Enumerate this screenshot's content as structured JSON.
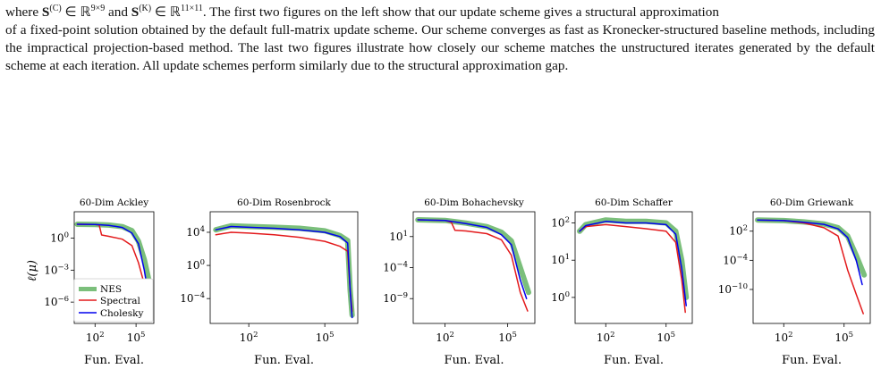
{
  "caption": {
    "line1_a": "where ",
    "math1": "S",
    "math1_sup": "(C)",
    "math1_in": " ∈ ℝ",
    "math1_dim": "9×9",
    "and": " and ",
    "math2": "S",
    "math2_sup": "(K)",
    "math2_in": " ∈ ℝ",
    "math2_dim": "11×11",
    "line1_b": ". The first two figures on the left show that our update scheme gives a structural approximation",
    "rest": "of a fixed-point solution obtained by the default full-matrix update scheme. Our scheme converges as fast as Kronecker-structured baseline methods, including the impractical projection-based method. The last two figures illustrate how closely our scheme matches the unstructured iterates generated by the default scheme at each iteration. All update schemes perform similarly due to the structural approximation gap."
  },
  "figure": {
    "ylabel": "ℓ(μ)",
    "legend": [
      {
        "name": "NES",
        "color": "#7bbf7b"
      },
      {
        "name": "Spectral",
        "color": "#e31a1c"
      },
      {
        "name": "Cholesky",
        "color": "#0000ee"
      }
    ]
  },
  "chart_data": [
    {
      "type": "line",
      "title": "60-Dim Ackley",
      "xlabel": "Fun. Eval.",
      "ylabel": "ℓ(μ)",
      "xscale": "log",
      "yscale": "log",
      "xlim": [
        3,
        2000000
      ],
      "ylim": [
        1e-08,
        300
      ],
      "xticks": [
        {
          "v": 100,
          "m": "10",
          "e": "2"
        },
        {
          "v": 100000,
          "m": "10",
          "e": "5"
        }
      ],
      "yticks": [
        {
          "v": 1,
          "m": "10",
          "e": "0"
        },
        {
          "v": 0.001,
          "m": "10",
          "e": "−3"
        },
        {
          "v": 1e-06,
          "m": "10",
          "e": "−6"
        }
      ],
      "series": [
        {
          "name": "NES",
          "x": [
            5,
            100,
            1000,
            10000,
            50000,
            150000,
            400000,
            1000000
          ],
          "y": [
            20,
            19,
            17,
            12,
            5,
            0.5,
            0.01,
            5e-05
          ]
        },
        {
          "name": "Spectral",
          "x": [
            5,
            100,
            200,
            300,
            1000,
            10000,
            50000,
            150000,
            400000,
            900000
          ],
          "y": [
            20,
            19,
            17,
            2,
            1.5,
            0.8,
            0.2,
            0.005,
            5e-05,
            3e-07
          ]
        },
        {
          "name": "Cholesky",
          "x": [
            5,
            100,
            1000,
            10000,
            50000,
            150000,
            400000,
            800000
          ],
          "y": [
            20,
            19,
            16,
            10,
            3,
            0.3,
            0.001,
            5e-06
          ]
        }
      ]
    },
    {
      "type": "line",
      "title": "60-Dim Rosenbrock",
      "xlabel": "Fun. Eval.",
      "xscale": "log",
      "yscale": "log",
      "xlim": [
        3,
        2000000
      ],
      "ylim": [
        1e-07,
        3000000.0
      ],
      "xticks": [
        {
          "v": 100,
          "m": "10",
          "e": "2"
        },
        {
          "v": 100000,
          "m": "10",
          "e": "5"
        }
      ],
      "yticks": [
        {
          "v": 10000,
          "m": "10",
          "e": "4"
        },
        {
          "v": 1,
          "m": "10",
          "e": "0"
        },
        {
          "v": 0.0001,
          "m": "10",
          "e": "−4"
        }
      ],
      "series": [
        {
          "name": "NES",
          "x": [
            5,
            20,
            100,
            1000,
            10000,
            100000,
            400000,
            800000,
            1000000,
            1200000
          ],
          "y": [
            20000,
            60000,
            50000,
            40000,
            30000,
            15000,
            4000,
            1000,
            0.001,
            1e-06
          ]
        },
        {
          "name": "Spectral",
          "x": [
            5,
            20,
            100,
            1000,
            10000,
            100000,
            400000,
            800000,
            1000000,
            1200000
          ],
          "y": [
            5000,
            10000,
            8000,
            5000,
            2500,
            800,
            200,
            50,
            0.001,
            3e-06
          ]
        },
        {
          "name": "Cholesky",
          "x": [
            5,
            20,
            100,
            1000,
            10000,
            100000,
            400000,
            800000,
            1000000,
            1200000
          ],
          "y": [
            20000,
            50000,
            40000,
            30000,
            20000,
            10000,
            3000,
            500,
            0.001,
            5e-07
          ]
        }
      ]
    },
    {
      "type": "line",
      "title": "60-Dim Bohachevsky",
      "xlabel": "Fun. Eval.",
      "xscale": "log",
      "yscale": "log",
      "xlim": [
        3,
        2000000
      ],
      "ylim": [
        1e-13,
        100000.0
      ],
      "xticks": [
        {
          "v": 100,
          "m": "10",
          "e": "2"
        },
        {
          "v": 100000,
          "m": "10",
          "e": "5"
        }
      ],
      "yticks": [
        {
          "v": 10,
          "m": "10",
          "e": "1"
        },
        {
          "v": 0.0001,
          "m": "10",
          "e": "−4"
        },
        {
          "v": 1e-09,
          "m": "10",
          "e": "−9"
        }
      ],
      "series": [
        {
          "name": "NES",
          "x": [
            5,
            100,
            1000,
            10000,
            50000,
            150000,
            400000,
            1000000
          ],
          "y": [
            5000,
            4000,
            1500,
            400,
            50,
            2,
            0.0001,
            1e-08
          ]
        },
        {
          "name": "Spectral",
          "x": [
            5,
            100,
            200,
            300,
            1000,
            10000,
            50000,
            150000,
            400000,
            900000
          ],
          "y": [
            5000,
            4000,
            2000,
            100,
            80,
            30,
            3,
            0.01,
            1e-08,
            1e-11
          ]
        },
        {
          "name": "Cholesky",
          "x": [
            5,
            100,
            1000,
            10000,
            50000,
            150000,
            400000,
            800000
          ],
          "y": [
            5000,
            4000,
            1200,
            300,
            20,
            0.5,
            1e-06,
            1e-09
          ]
        }
      ]
    },
    {
      "type": "line",
      "title": "60-Dim Schaffer",
      "xlabel": "Fun. Eval.",
      "xscale": "log",
      "yscale": "log",
      "xlim": [
        3,
        2000000
      ],
      "ylim": [
        0.2,
        200
      ],
      "xticks": [
        {
          "v": 100,
          "m": "10",
          "e": "2"
        },
        {
          "v": 100000,
          "m": "10",
          "e": "5"
        }
      ],
      "yticks": [
        {
          "v": 100,
          "m": "10",
          "e": "2"
        },
        {
          "v": 10,
          "m": "10",
          "e": "1"
        },
        {
          "v": 1,
          "m": "10",
          "e": "0"
        }
      ],
      "series": [
        {
          "name": "NES",
          "x": [
            5,
            10,
            100,
            1000,
            10000,
            100000,
            300000,
            600000,
            1000000
          ],
          "y": [
            60,
            90,
            120,
            110,
            110,
            100,
            60,
            10,
            1
          ]
        },
        {
          "name": "Spectral",
          "x": [
            5,
            10,
            100,
            1000,
            10000,
            100000,
            300000,
            600000,
            900000
          ],
          "y": [
            60,
            80,
            90,
            80,
            70,
            60,
            30,
            3,
            0.4
          ]
        },
        {
          "name": "Cholesky",
          "x": [
            5,
            10,
            100,
            1000,
            10000,
            100000,
            300000,
            600000,
            1000000
          ],
          "y": [
            60,
            85,
            110,
            100,
            100,
            90,
            50,
            6,
            0.6
          ]
        }
      ]
    },
    {
      "type": "line",
      "title": "60-Dim Griewank",
      "xlabel": "Fun. Eval.",
      "xscale": "log",
      "yscale": "log",
      "xlim": [
        3,
        2000000
      ],
      "ylim": [
        1e-17,
        1000000.0
      ],
      "xticks": [
        {
          "v": 100,
          "m": "10",
          "e": "2"
        },
        {
          "v": 100000,
          "m": "10",
          "e": "5"
        }
      ],
      "yticks": [
        {
          "v": 100,
          "m": "10",
          "e": "2"
        },
        {
          "v": 0.0001,
          "m": "10",
          "e": "−4"
        },
        {
          "v": 1e-10,
          "m": "10",
          "e": "−10"
        }
      ],
      "series": [
        {
          "name": "NES",
          "x": [
            5,
            100,
            1000,
            10000,
            50000,
            150000,
            400000,
            1000000
          ],
          "y": [
            20000,
            15000,
            8000,
            3000,
            500,
            10,
            0.001,
            1e-07
          ]
        },
        {
          "name": "Spectral",
          "x": [
            5,
            100,
            1000,
            10000,
            50000,
            150000,
            400000,
            900000
          ],
          "y": [
            20000,
            15000,
            5000,
            500,
            10,
            1e-06,
            1e-11,
            1e-15
          ]
        },
        {
          "name": "Cholesky",
          "x": [
            5,
            100,
            1000,
            10000,
            50000,
            150000,
            400000,
            800000
          ],
          "y": [
            20000,
            15000,
            7000,
            2500,
            300,
            5,
            0.0001,
            1e-09
          ]
        }
      ]
    }
  ]
}
